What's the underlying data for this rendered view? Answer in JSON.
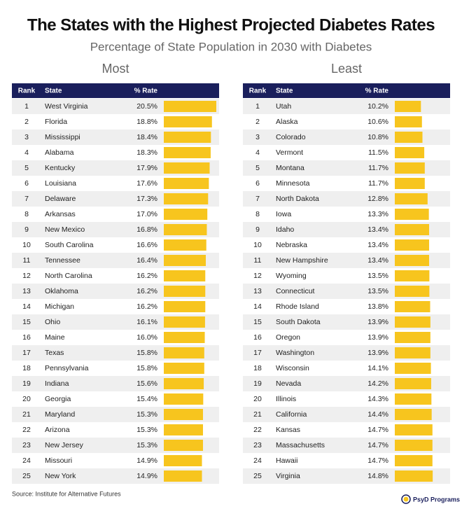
{
  "title": "The States with the Highest Projected Diabetes Rates",
  "subtitle": "Percentage of State Population in 2030 with Diabetes",
  "tables": [
    {
      "heading": "Most",
      "columns": [
        "Rank",
        "State",
        "% Rate"
      ],
      "ranks": [
        1,
        2,
        3,
        4,
        5,
        6,
        7,
        8,
        9,
        10,
        11,
        12,
        13,
        14,
        15,
        16,
        17,
        18,
        19,
        20,
        21,
        22,
        23,
        24,
        25
      ],
      "categories": [
        "West Virginia",
        "Florida",
        "Mississippi",
        "Alabama",
        "Kentucky",
        "Louisiana",
        "Delaware",
        "Arkansas",
        "New Mexico",
        "South Carolina",
        "Tennessee",
        "North Carolina",
        "Oklahoma",
        "Michigan",
        "Ohio",
        "Maine",
        "Texas",
        "Pennsylvania",
        "Indiana",
        "Georgia",
        "Maryland",
        "Arizona",
        "New Jersey",
        "Missouri",
        "New York"
      ],
      "values": [
        20.5,
        18.8,
        18.4,
        18.3,
        17.9,
        17.6,
        17.3,
        17.0,
        16.8,
        16.6,
        16.4,
        16.2,
        16.2,
        16.2,
        16.1,
        16.0,
        15.8,
        15.8,
        15.6,
        15.4,
        15.3,
        15.3,
        15.3,
        14.9,
        14.9
      ],
      "value_labels": [
        "20.5%",
        "18.8%",
        "18.4%",
        "18.3%",
        "17.9%",
        "17.6%",
        "17.3%",
        "17.0%",
        "16.8%",
        "16.6%",
        "16.4%",
        "16.2%",
        "16.2%",
        "16.2%",
        "16.1%",
        "16.0%",
        "15.8%",
        "15.8%",
        "15.6%",
        "15.4%",
        "15.3%",
        "15.3%",
        "15.3%",
        "14.9%",
        "14.9%"
      ],
      "color": "#f7c51e"
    },
    {
      "heading": "Least",
      "columns": [
        "Rank",
        "State",
        "% Rate"
      ],
      "ranks": [
        1,
        2,
        3,
        4,
        5,
        6,
        7,
        8,
        9,
        10,
        11,
        12,
        13,
        14,
        15,
        16,
        17,
        18,
        19,
        20,
        21,
        22,
        23,
        24,
        25
      ],
      "categories": [
        "Utah",
        "Alaska",
        "Colorado",
        "Vermont",
        "Montana",
        "Minnesota",
        "North Dakota",
        "Iowa",
        "Idaho",
        "Nebraska",
        "New Hampshire",
        "Wyoming",
        "Connecticut",
        "Rhode Island",
        "South Dakota",
        "Oregon",
        "Washington",
        "Wisconsin",
        "Nevada",
        "Illinois",
        "California",
        "Kansas",
        "Massachusetts",
        "Hawaii",
        "Virginia"
      ],
      "values": [
        10.2,
        10.6,
        10.8,
        11.5,
        11.7,
        11.7,
        12.8,
        13.3,
        13.4,
        13.4,
        13.4,
        13.5,
        13.5,
        13.8,
        13.9,
        13.9,
        13.9,
        14.1,
        14.2,
        14.3,
        14.4,
        14.7,
        14.7,
        14.7,
        14.8
      ],
      "value_labels": [
        "10.2%",
        "10.6%",
        "10.8%",
        "11.5%",
        "11.7%",
        "11.7%",
        "12.8%",
        "13.3%",
        "13.4%",
        "13.4%",
        "13.4%",
        "13.5%",
        "13.5%",
        "13.8%",
        "13.9%",
        "13.9%",
        "13.9%",
        "14.1%",
        "14.2%",
        "14.3%",
        "14.4%",
        "14.7%",
        "14.7%",
        "14.7%",
        "14.8%"
      ],
      "color": "#f7c51e"
    }
  ],
  "source": "Source: Institute for Alternative Futures",
  "logo": "PsyD Programs"
}
